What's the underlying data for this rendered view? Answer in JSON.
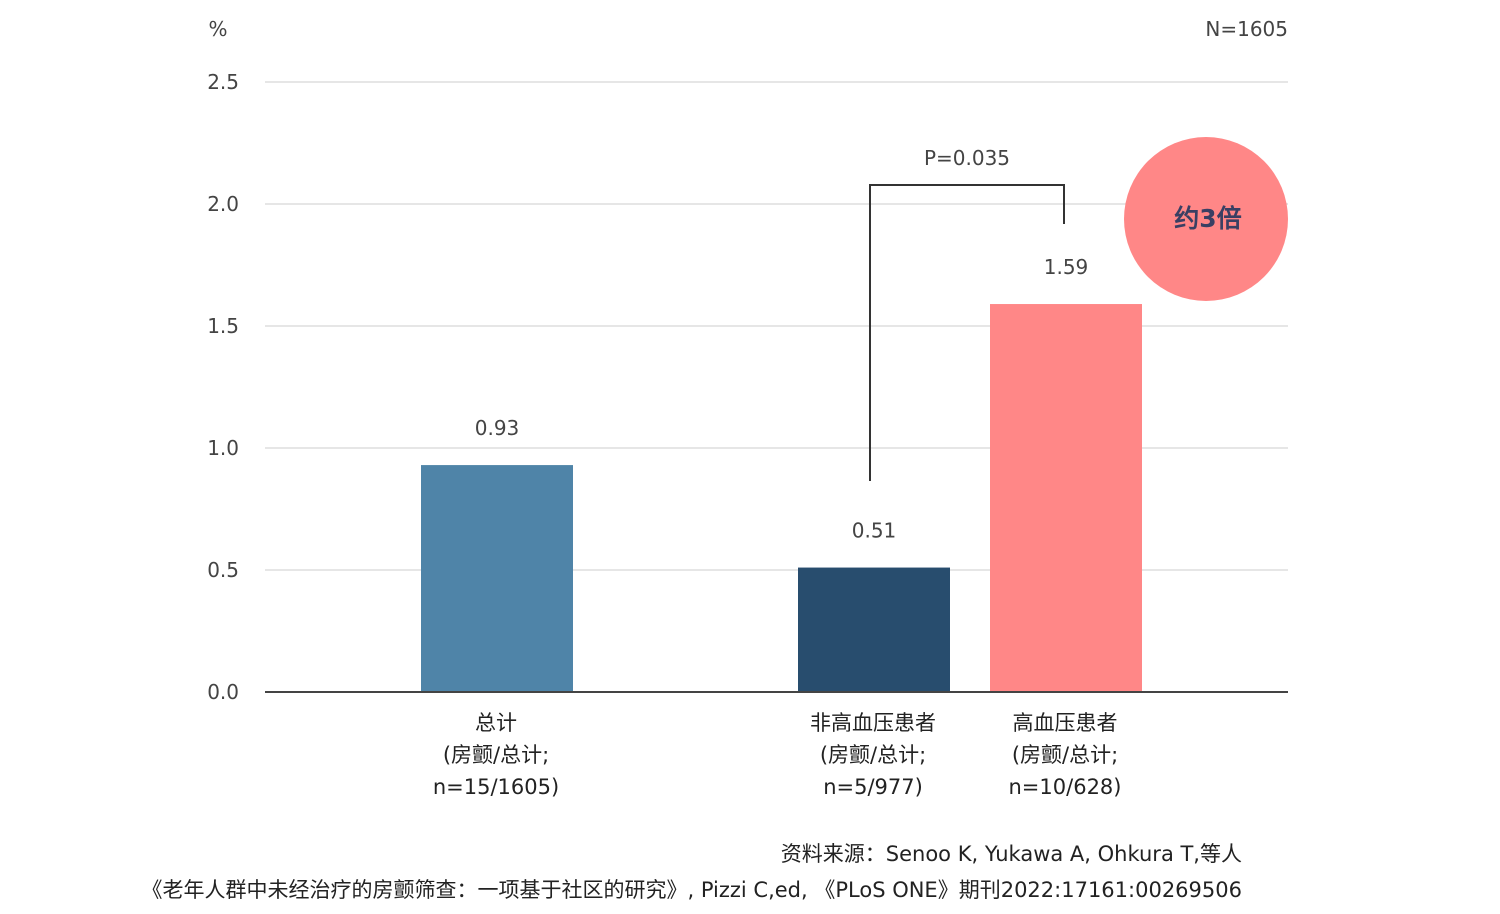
{
  "chart_data": {
    "type": "bar",
    "ylabel": "%",
    "ylim": [
      0,
      2.5
    ],
    "yticks": [
      "0.0",
      "0.5",
      "1.0",
      "1.5",
      "2.0",
      "2.5"
    ],
    "ytick_values": [
      0,
      0.5,
      1.0,
      1.5,
      2.0,
      2.5
    ],
    "sample_note": "N=1605",
    "grid": true,
    "categories": [
      {
        "line1": "总计",
        "line2": "(房颤/总计;",
        "line3": "n=15/1605)"
      },
      {
        "line1": "非高血压患者",
        "line2": "(房颤/总计;",
        "line3": "n=5/977)"
      },
      {
        "line1": "高血压患者",
        "line2": "(房颤/总计;",
        "line3": "n=10/628)"
      }
    ],
    "values": [
      0.93,
      0.51,
      1.59
    ],
    "value_labels": [
      "0.93",
      "0.51",
      "1.59"
    ],
    "colors": [
      "#4f84a8",
      "#284d6e",
      "#ff8787"
    ],
    "annotation": {
      "text": "P=0.035",
      "between": [
        1,
        2
      ]
    },
    "badge": {
      "text": "约3倍",
      "color": "#ff8787"
    }
  },
  "source": {
    "line1": "资料来源：Senoo K, Yukawa A, Ohkura T,等人",
    "line2": "《老年人群中未经治疗的房颤筛查：一项基于社区的研究》, Pizzi C,ed, 《PLoS ONE》期刊2022:17161:00269506"
  }
}
